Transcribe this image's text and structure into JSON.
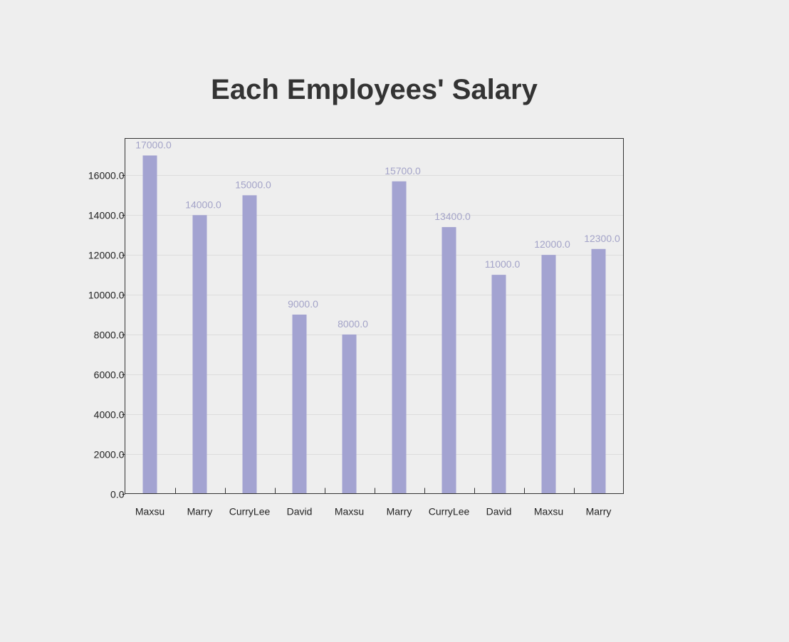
{
  "chart_data": {
    "type": "bar",
    "title": "Each Employees' Salary",
    "xlabel": "",
    "ylabel": "",
    "categories": [
      "Maxsu",
      "Marry",
      "CurryLee",
      "David",
      "Maxsu",
      "Marry",
      "CurryLee",
      "David",
      "Maxsu",
      "Marry"
    ],
    "values": [
      17000.0,
      14000.0,
      15000.0,
      9000.0,
      8000.0,
      15700.0,
      13400.0,
      11000.0,
      12000.0,
      12300.0
    ],
    "data_labels": [
      "17000.0",
      "14000.0",
      "15000.0",
      "9000.0",
      "8000.0",
      "15700.0",
      "13400.0",
      "11000.0",
      "12000.0",
      "12300.0"
    ],
    "yticks": [
      0,
      2000,
      4000,
      6000,
      8000,
      10000,
      12000,
      14000,
      16000
    ],
    "ytick_labels": [
      "0.0",
      "2000.0",
      "4000.0",
      "6000.0",
      "8000.0",
      "10000.0",
      "12000.0",
      "14000.0",
      "16000.0"
    ],
    "ylim": [
      0,
      17857
    ],
    "grid": true,
    "legend": "none"
  },
  "colors": {
    "bar": "#a3a3d1",
    "data_label": "#a3a3c8",
    "gridline": "#dcdcdc",
    "plot_border": "#333333",
    "axis_text": "#222222",
    "title": "#333333",
    "background": "#eeeeee"
  }
}
